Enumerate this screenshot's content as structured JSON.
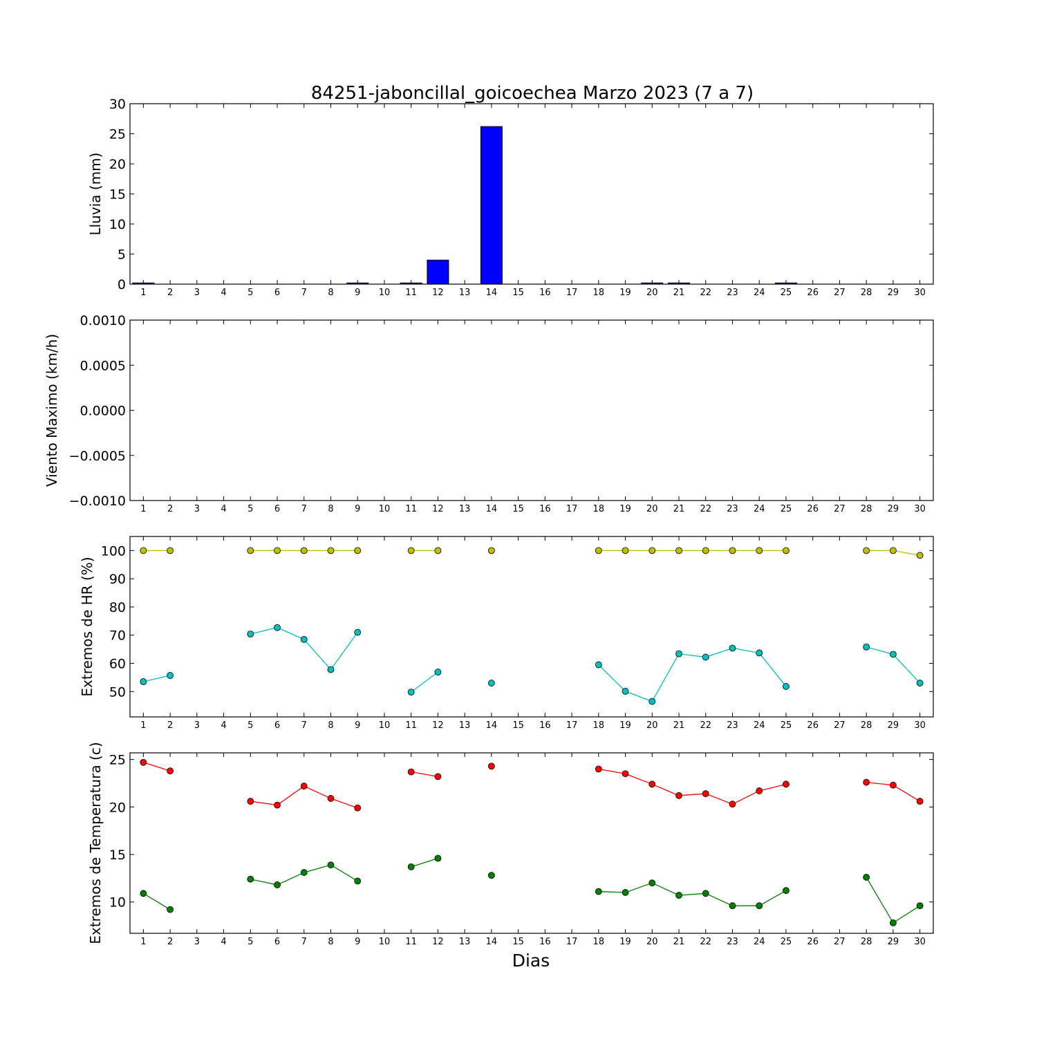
{
  "chart_data": {
    "title": "84251-jaboncillal_goicoechea Marzo 2023  (7 a 7)",
    "xlabel": "Dias",
    "days": [
      1,
      2,
      3,
      4,
      5,
      6,
      7,
      8,
      9,
      10,
      11,
      12,
      13,
      14,
      15,
      16,
      17,
      18,
      19,
      20,
      21,
      22,
      23,
      24,
      25,
      26,
      27,
      28,
      29,
      30
    ],
    "panels": [
      {
        "type": "bar",
        "ylabel": "Lluvia (mm)",
        "ylim": [
          0,
          30
        ],
        "yticks": [
          0,
          5,
          10,
          15,
          20,
          25,
          30
        ],
        "ytick_labels": [
          "0",
          "5",
          "10",
          "15",
          "20",
          "25",
          "30"
        ],
        "series": [
          {
            "color": "#0000ff",
            "values": [
              0.2,
              0,
              0,
              0,
              0,
              0,
              0,
              0,
              0.2,
              0,
              0.2,
              4.0,
              0,
              26.2,
              0,
              0,
              0,
              0,
              0,
              0.2,
              0.2,
              0,
              0,
              0,
              0.2,
              0,
              0,
              0,
              0,
              0
            ]
          }
        ]
      },
      {
        "type": "line",
        "ylabel": "Viento Maximo (km/h)",
        "ylim": [
          -0.001,
          0.001
        ],
        "yticks": [
          -0.001,
          -0.0005,
          0.0,
          0.0005,
          0.001
        ],
        "ytick_labels": [
          "−0.0010",
          "−0.0005",
          "0.0000",
          "0.0005",
          "0.0010"
        ],
        "series": []
      },
      {
        "type": "line",
        "ylabel": "Extremos de HR (%)",
        "ylim": [
          41,
          105
        ],
        "yticks": [
          50,
          60,
          70,
          80,
          90,
          100
        ],
        "ytick_labels": [
          "50",
          "60",
          "70",
          "80",
          "90",
          "100"
        ],
        "series": [
          {
            "color": "#bfbf00",
            "values": [
              100,
              100,
              null,
              null,
              100,
              100,
              100,
              100,
              100,
              null,
              100,
              100,
              null,
              100,
              null,
              null,
              null,
              100,
              100,
              100,
              100,
              100,
              100,
              100,
              100,
              null,
              null,
              100,
              100,
              98.3
            ]
          },
          {
            "color": "#00bfbf",
            "values": [
              53.5,
              55.7,
              null,
              null,
              70.4,
              72.7,
              68.5,
              57.8,
              71.0,
              null,
              49.8,
              56.9,
              null,
              53.0,
              null,
              null,
              null,
              59.5,
              50.1,
              46.5,
              63.4,
              62.2,
              65.4,
              63.7,
              51.8,
              null,
              null,
              65.8,
              63.2,
              53.0
            ]
          }
        ]
      },
      {
        "type": "line",
        "ylabel": "Extremos de Temperatura (c)",
        "ylim": [
          6.7,
          25.7
        ],
        "yticks": [
          10,
          15,
          20,
          25
        ],
        "ytick_labels": [
          "10",
          "15",
          "20",
          "25"
        ],
        "series": [
          {
            "color": "#ff0000",
            "values": [
              24.7,
              23.8,
              null,
              null,
              20.6,
              20.2,
              22.2,
              20.9,
              19.9,
              null,
              23.7,
              23.2,
              null,
              24.3,
              null,
              null,
              null,
              24.0,
              23.5,
              22.4,
              21.2,
              21.4,
              20.3,
              21.7,
              22.4,
              null,
              null,
              22.6,
              22.3,
              20.6
            ]
          },
          {
            "color": "#008000",
            "values": [
              10.9,
              9.2,
              null,
              null,
              12.4,
              11.8,
              13.1,
              13.9,
              12.2,
              null,
              13.7,
              14.6,
              null,
              12.8,
              null,
              null,
              null,
              11.1,
              11.0,
              12.0,
              10.7,
              10.9,
              9.6,
              9.6,
              11.2,
              null,
              null,
              12.6,
              7.8,
              9.6
            ]
          }
        ]
      }
    ]
  }
}
